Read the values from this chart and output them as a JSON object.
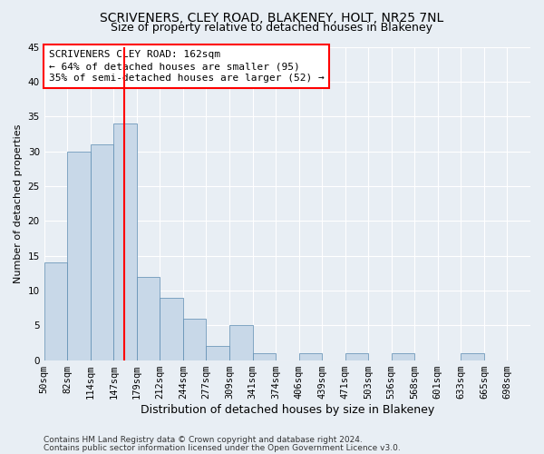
{
  "title": "SCRIVENERS, CLEY ROAD, BLAKENEY, HOLT, NR25 7NL",
  "subtitle": "Size of property relative to detached houses in Blakeney",
  "xlabel": "Distribution of detached houses by size in Blakeney",
  "ylabel": "Number of detached properties",
  "bin_labels": [
    "50sqm",
    "82sqm",
    "114sqm",
    "147sqm",
    "179sqm",
    "212sqm",
    "244sqm",
    "277sqm",
    "309sqm",
    "341sqm",
    "374sqm",
    "406sqm",
    "439sqm",
    "471sqm",
    "503sqm",
    "536sqm",
    "568sqm",
    "601sqm",
    "633sqm",
    "665sqm",
    "698sqm"
  ],
  "bar_heights": [
    14,
    30,
    31,
    34,
    12,
    9,
    6,
    2,
    5,
    1,
    0,
    1,
    0,
    1,
    0,
    1,
    0,
    0,
    1,
    0,
    0
  ],
  "bar_color": "#c8d8e8",
  "bar_edge_color": "#5a8ab0",
  "vline_color": "red",
  "vline_linewidth": 1.5,
  "annotation_line1": "SCRIVENERS CLEY ROAD: 162sqm",
  "annotation_line2": "← 64% of detached houses are smaller (95)",
  "annotation_line3": "35% of semi-detached houses are larger (52) →",
  "ylim": [
    0,
    45
  ],
  "yticks": [
    0,
    5,
    10,
    15,
    20,
    25,
    30,
    35,
    40,
    45
  ],
  "background_color": "#e8eef4",
  "plot_background": "#e8eef4",
  "grid_color": "#ffffff",
  "title_fontsize": 10,
  "subtitle_fontsize": 9,
  "xlabel_fontsize": 9,
  "ylabel_fontsize": 8,
  "tick_fontsize": 7.5,
  "annotation_fontsize": 8,
  "footer_line1": "Contains HM Land Registry data © Crown copyright and database right 2024.",
  "footer_line2": "Contains public sector information licensed under the Open Government Licence v3.0.",
  "footer_fontsize": 6.5
}
